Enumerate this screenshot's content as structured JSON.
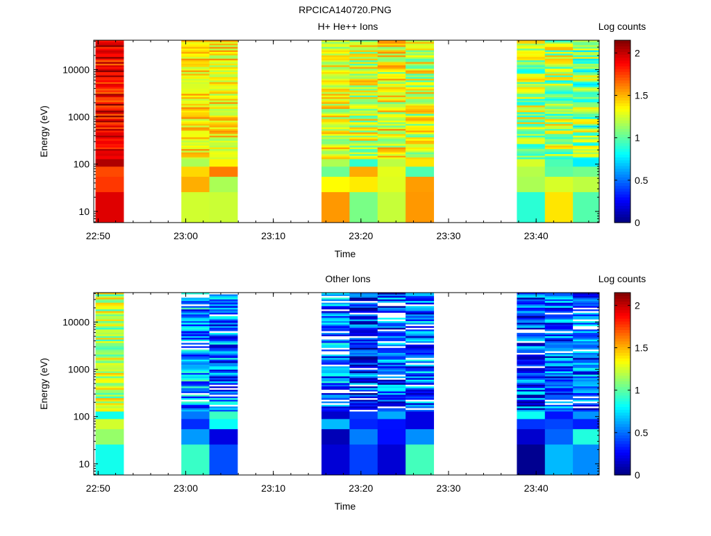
{
  "figure_title": "RPCICA140720.PNG",
  "colorbar": {
    "label": "Log counts",
    "min": 0,
    "max": 2.15,
    "ticks": [
      0,
      0.5,
      1,
      1.5,
      2
    ],
    "tick_labels": [
      "0",
      "0.5",
      "1",
      "1.5",
      "2"
    ]
  },
  "chart_data": [
    {
      "type": "heatmap",
      "title": "H+ He++ Ions",
      "xlabel": "Time",
      "ylabel": "Energy (eV)",
      "y_scale": "log",
      "x_ticks": [
        "22:50",
        "23:00",
        "23:10",
        "23:20",
        "23:30",
        "23:40"
      ],
      "y_ticks": [
        10,
        100,
        1000,
        10000
      ],
      "y_tick_labels": [
        "10",
        "100",
        "1000",
        "10000"
      ],
      "xlim": [
        "22:49.5",
        "23:47.2"
      ],
      "ylim": [
        5.8,
        42000
      ],
      "columns": [
        {
          "time_start": "22:49.7",
          "time_end": "22:52.9",
          "base": 1.9,
          "spread": 0.25
        },
        {
          "time_start": "22:59.5",
          "time_end": "23:02.7",
          "base": 1.4,
          "spread": 0.2
        },
        {
          "time_start": "23:02.7",
          "time_end": "23:05.9",
          "base": 1.35,
          "spread": 0.25
        },
        {
          "time_start": "23:15.5",
          "time_end": "23:18.7",
          "base": 1.3,
          "spread": 0.25
        },
        {
          "time_start": "23:18.7",
          "time_end": "23:21.9",
          "base": 1.25,
          "spread": 0.3
        },
        {
          "time_start": "23:21.9",
          "time_end": "23:25.1",
          "base": 1.3,
          "spread": 0.3
        },
        {
          "time_start": "23:25.1",
          "time_end": "23:28.3",
          "base": 1.25,
          "spread": 0.3
        },
        {
          "time_start": "23:37.8",
          "time_end": "23:41.0",
          "base": 1.15,
          "spread": 0.35
        },
        {
          "time_start": "23:41.0",
          "time_end": "23:44.2",
          "base": 1.15,
          "spread": 0.35
        },
        {
          "time_start": "23:44.2",
          "time_end": "23:47.2",
          "base": 1.1,
          "spread": 0.35
        }
      ]
    },
    {
      "type": "heatmap",
      "title": "Other Ions",
      "xlabel": "Time",
      "ylabel": "Energy (eV)",
      "y_scale": "log",
      "x_ticks": [
        "22:50",
        "23:00",
        "23:10",
        "23:20",
        "23:30",
        "23:40"
      ],
      "y_ticks": [
        10,
        100,
        1000,
        10000
      ],
      "y_tick_labels": [
        "10",
        "100",
        "1000",
        "10000"
      ],
      "xlim": [
        "22:49.5",
        "23:47.2"
      ],
      "ylim": [
        5.8,
        42000
      ],
      "columns": [
        {
          "time_start": "22:49.7",
          "time_end": "22:52.9",
          "base": 1.2,
          "spread": 0.3
        },
        {
          "time_start": "22:59.5",
          "time_end": "23:02.7",
          "base": 0.6,
          "spread": 0.4
        },
        {
          "time_start": "23:02.7",
          "time_end": "23:05.9",
          "base": 0.5,
          "spread": 0.4
        },
        {
          "time_start": "23:15.5",
          "time_end": "23:18.7",
          "base": 0.55,
          "spread": 0.4
        },
        {
          "time_start": "23:18.7",
          "time_end": "23:21.9",
          "base": 0.4,
          "spread": 0.4
        },
        {
          "time_start": "23:21.9",
          "time_end": "23:25.1",
          "base": 0.45,
          "spread": 0.4
        },
        {
          "time_start": "23:25.1",
          "time_end": "23:28.3",
          "base": 0.5,
          "spread": 0.4
        },
        {
          "time_start": "23:37.8",
          "time_end": "23:41.0",
          "base": 0.4,
          "spread": 0.4
        },
        {
          "time_start": "23:41.0",
          "time_end": "23:44.2",
          "base": 0.45,
          "spread": 0.4
        },
        {
          "time_start": "23:44.2",
          "time_end": "23:47.2",
          "base": 0.45,
          "spread": 0.4
        }
      ]
    }
  ]
}
